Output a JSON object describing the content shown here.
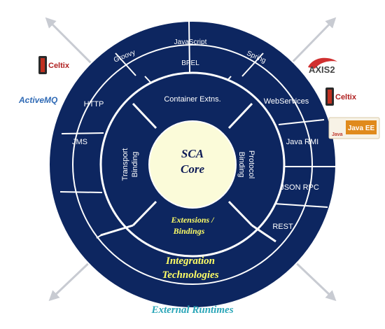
{
  "colors": {
    "ring_fill": "#0d2660",
    "divider": "#ffffff",
    "core_fill": "#fbfbd9",
    "core_text": "#0d1a56",
    "highlight_text": "#ffff66",
    "footer_text": "#2aa6b8",
    "arrow": "#c8cbd2"
  },
  "core": {
    "line1": "SCA",
    "line2": "Core"
  },
  "inner_ring": {
    "container": "Container Extns.",
    "transport_line1": "Transport",
    "transport_line2": "Binding",
    "protocol_line1": "Protocol",
    "protocol_line2": "Binding",
    "extensions_line1": "Extensions /",
    "extensions_line2": "Bindings"
  },
  "outer_ring": {
    "groovy": "Groovy",
    "javascript": "JavaScript",
    "bpel": "BPEL",
    "spring": "Spring",
    "webservices": "WebServices",
    "java_rmi": "Java RMI",
    "json_rpc": "JSON RPC",
    "rest": "REST",
    "http": "HTTP",
    "jms": "JMS"
  },
  "bottom": {
    "line1": "Integration",
    "line2": "Technologies"
  },
  "footer": "External Runtimes",
  "logos": {
    "celtix_left": "Celtix",
    "celtix_right": "Celtix",
    "activemq": "ActiveMQ",
    "axis2": "AXIS2",
    "java": "Java",
    "javaee": "Java EE"
  }
}
